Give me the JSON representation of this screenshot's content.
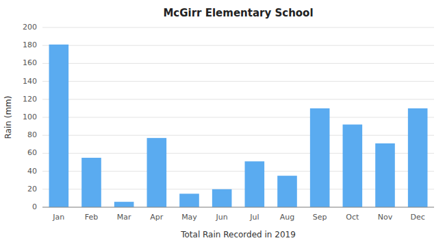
{
  "chart_data": {
    "type": "bar",
    "title": "McGirr Elementary School",
    "xlabel": "Total Rain Recorded in 2019",
    "ylabel": "Rain (mm)",
    "categories": [
      "Jan",
      "Feb",
      "Mar",
      "Apr",
      "May",
      "Jun",
      "Jul",
      "Aug",
      "Sep",
      "Oct",
      "Nov",
      "Dec"
    ],
    "values": [
      181,
      55,
      6,
      77,
      15,
      20,
      51,
      35,
      110,
      92,
      71,
      110
    ],
    "color": "#5aabf0",
    "ylim": [
      0,
      200
    ],
    "yticks": [
      0,
      20,
      40,
      60,
      80,
      100,
      120,
      140,
      160,
      180,
      200
    ],
    "grid": true
  }
}
